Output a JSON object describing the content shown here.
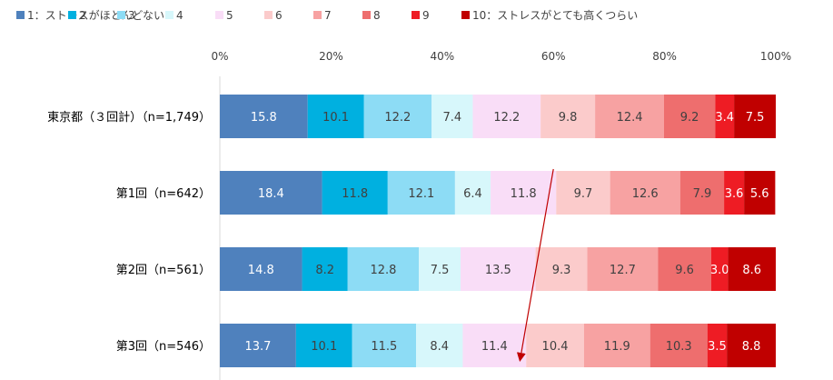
{
  "chart_data": {
    "type": "bar",
    "orientation": "horizontal",
    "stacked": "percent",
    "categories": [
      "東京都（３回計）（n=1,749）",
      "第1回（n=642）",
      "第2回（n=561）",
      "第3回（n=546）"
    ],
    "series": [
      {
        "name": "1：ストレスがほとんどない",
        "color": "#4f81bd",
        "values": [
          15.8,
          18.4,
          14.8,
          13.7
        ]
      },
      {
        "name": "2",
        "color": "#00b0e0",
        "values": [
          10.1,
          11.8,
          8.2,
          10.1
        ]
      },
      {
        "name": "3",
        "color": "#8ddcf5",
        "values": [
          12.2,
          12.1,
          12.8,
          11.5
        ]
      },
      {
        "name": "4",
        "color": "#d7f7fb",
        "values": [
          7.4,
          6.4,
          7.5,
          8.4
        ]
      },
      {
        "name": "5",
        "color": "#f9ddf7",
        "values": [
          12.2,
          11.8,
          13.5,
          11.4
        ]
      },
      {
        "name": "6",
        "color": "#fbcbcb",
        "values": [
          9.8,
          9.7,
          9.3,
          10.4
        ]
      },
      {
        "name": "7",
        "color": "#f7a2a2",
        "values": [
          12.4,
          12.6,
          12.7,
          11.9
        ]
      },
      {
        "name": "8",
        "color": "#ee6e6e",
        "values": [
          9.2,
          7.9,
          9.6,
          10.3
        ]
      },
      {
        "name": "9",
        "color": "#ee1c24",
        "values": [
          3.4,
          3.6,
          3.0,
          3.5
        ]
      },
      {
        "name": "10：ストレスがとても高くつらい",
        "color": "#c00000",
        "values": [
          7.5,
          5.6,
          8.6,
          8.8
        ]
      }
    ],
    "x_ticks": [
      "0%",
      "20%",
      "40%",
      "60%",
      "80%",
      "100%"
    ],
    "xlim": [
      0,
      100
    ],
    "grid": false,
    "legend_position": "top",
    "annotation": {
      "type": "arrow",
      "color": "#c00000",
      "from": {
        "category_index": 1,
        "x": 60
      },
      "to": {
        "category_index": 3,
        "x": 54
      }
    }
  }
}
